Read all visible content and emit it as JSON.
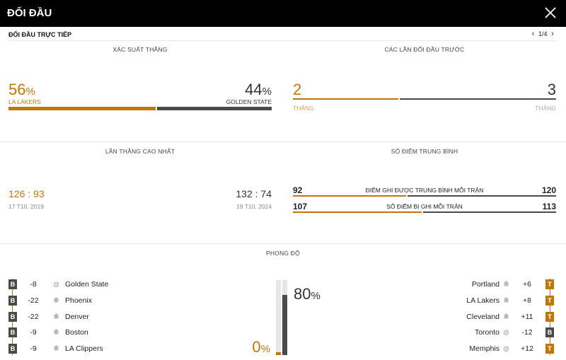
{
  "header": {
    "title": "ĐỐI ĐẦU"
  },
  "subheader": {
    "title": "ĐỐI ĐẦU TRỰC TIẾP",
    "page": "1/4"
  },
  "win_probability": {
    "title": "XÁC SUẤT THẮNG",
    "home_value": "56",
    "home_unit": "%",
    "home_team": "LA LAKERS",
    "away_value": "44",
    "away_unit": "%",
    "away_team": "GOLDEN STATE",
    "home_fraction": 0.56
  },
  "previous_meetings": {
    "title": "CÁC LẦN ĐỐI ĐẦU TRƯỚC",
    "home_wins": "2",
    "away_wins": "3",
    "home_label": "THẮNG",
    "away_label": "THẮNG",
    "home_fraction": 0.4
  },
  "biggest_win": {
    "title": "LẦN THẮNG CAO NHẤT",
    "home_score": "126 : 93",
    "home_date": "17 T10, 2019",
    "away_score": "132 : 74",
    "away_date": "19 T10, 2024"
  },
  "average_points": {
    "title": "SỐ ĐIỂM TRUNG BÌNH",
    "rows": [
      {
        "home": "92",
        "label": "ĐIỂM GHI ĐƯỢC TRUNG BÌNH MỖI TRẬN",
        "away": "120",
        "home_fraction": 0.43
      },
      {
        "home": "107",
        "label": "SỐ ĐIỂM BỊ GHI MỖI TRẬN",
        "away": "113",
        "home_fraction": 0.49
      }
    ]
  },
  "form": {
    "title": "PHONG ĐỘ",
    "home_pct": "0",
    "away_pct": "80",
    "unit": "%",
    "home_fraction": 0.0,
    "away_fraction": 0.8,
    "home_games": [
      {
        "result": "B",
        "diff": "-8",
        "venue": "@",
        "opponent": "Golden State"
      },
      {
        "result": "B",
        "diff": "-22",
        "venue": "home",
        "opponent": "Phoenix"
      },
      {
        "result": "B",
        "diff": "-22",
        "venue": "home",
        "opponent": "Denver"
      },
      {
        "result": "B",
        "diff": "-9",
        "venue": "home",
        "opponent": "Boston"
      },
      {
        "result": "B",
        "diff": "-9",
        "venue": "home",
        "opponent": "LA Clippers"
      }
    ],
    "away_games": [
      {
        "result": "T",
        "diff": "+6",
        "venue": "home",
        "opponent": "Portland"
      },
      {
        "result": "T",
        "diff": "+8",
        "venue": "home",
        "opponent": "LA Lakers"
      },
      {
        "result": "T",
        "diff": "+11",
        "venue": "home",
        "opponent": "Cleveland"
      },
      {
        "result": "B",
        "diff": "-12",
        "venue": "@",
        "opponent": "Toronto"
      },
      {
        "result": "T",
        "diff": "+12",
        "venue": "@",
        "opponent": "Memphis"
      }
    ]
  },
  "colors": {
    "accent": "#c27608",
    "dark": "#4a4a4a",
    "track": "#d9d9d9"
  }
}
